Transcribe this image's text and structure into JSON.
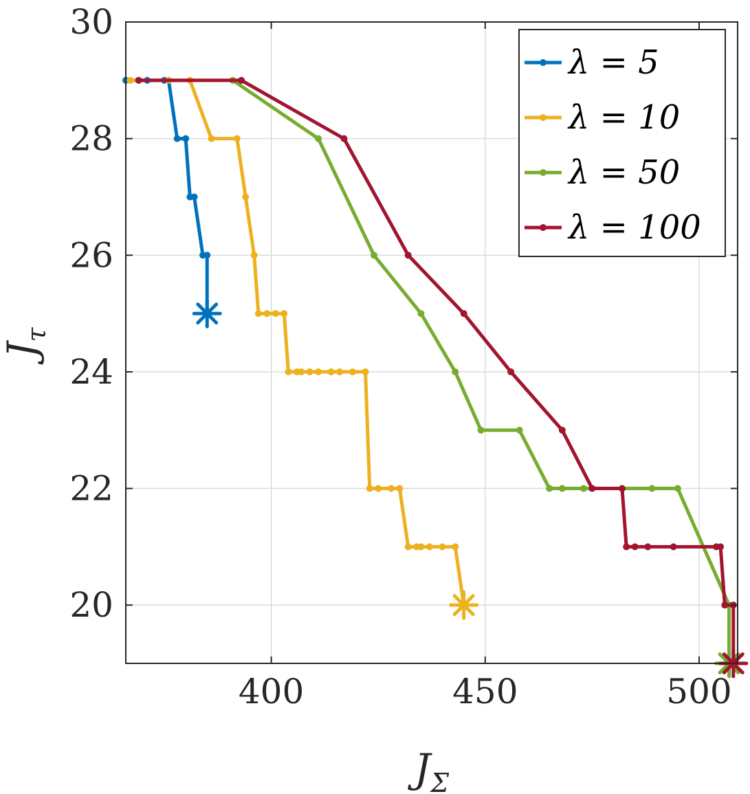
{
  "chart_data": {
    "type": "line",
    "xlabel": "J",
    "xlabel_sub": "Σ",
    "ylabel": "J",
    "ylabel_sub": "τ",
    "xlim": [
      366,
      509
    ],
    "ylim": [
      19,
      30
    ],
    "xticks": [
      400,
      450,
      500
    ],
    "xtick_labels": [
      "400",
      "450",
      "500"
    ],
    "yticks": [
      20,
      22,
      24,
      26,
      28,
      30
    ],
    "ytick_labels": [
      "20",
      "22",
      "24",
      "26",
      "28",
      "30"
    ],
    "grid": true,
    "legend_position": "top-right",
    "series": [
      {
        "name": "λ = 5",
        "color": "#0072BD",
        "x": [
          366,
          371,
          375,
          376,
          378,
          380,
          381,
          382,
          384,
          385,
          385
        ],
        "y": [
          29,
          29,
          29,
          29,
          28,
          28,
          27,
          27,
          26,
          26,
          25
        ],
        "marker_end": {
          "x": 385,
          "y": 25
        }
      },
      {
        "name": "λ = 10",
        "color": "#EDB120",
        "x": [
          367,
          376,
          381,
          386,
          392,
          394,
          396,
          397,
          399,
          401,
          403,
          404,
          406,
          407,
          409,
          411,
          414,
          416,
          419,
          422,
          423,
          425,
          428,
          430,
          432,
          434,
          435,
          437,
          440,
          443,
          445,
          445
        ],
        "y": [
          29,
          29,
          29,
          28,
          28,
          27,
          26,
          25,
          25,
          25,
          25,
          24,
          24,
          24,
          24,
          24,
          24,
          24,
          24,
          24,
          22,
          22,
          22,
          22,
          21,
          21,
          21,
          21,
          21,
          21,
          20,
          20
        ],
        "marker_end": {
          "x": 445,
          "y": 20
        }
      },
      {
        "name": "λ = 50",
        "color": "#77AC30",
        "x": [
          391,
          411,
          424,
          435,
          443,
          449,
          458,
          465,
          468,
          473,
          489,
          495,
          507,
          507
        ],
        "y": [
          29,
          28,
          26,
          25,
          24,
          23,
          23,
          22,
          22,
          22,
          22,
          22,
          20,
          19
        ],
        "marker_end": {
          "x": 507,
          "y": 19
        }
      },
      {
        "name": "λ = 100",
        "color": "#A2142F",
        "x": [
          369,
          393,
          417,
          432,
          445,
          456,
          468,
          475,
          482,
          483,
          485,
          488,
          494,
          504,
          505,
          506,
          508,
          508
        ],
        "y": [
          29,
          29,
          28,
          26,
          25,
          24,
          23,
          22,
          22,
          21,
          21,
          21,
          21,
          21,
          21,
          20,
          20,
          19
        ],
        "marker_end": {
          "x": 508,
          "y": 19
        }
      }
    ]
  }
}
